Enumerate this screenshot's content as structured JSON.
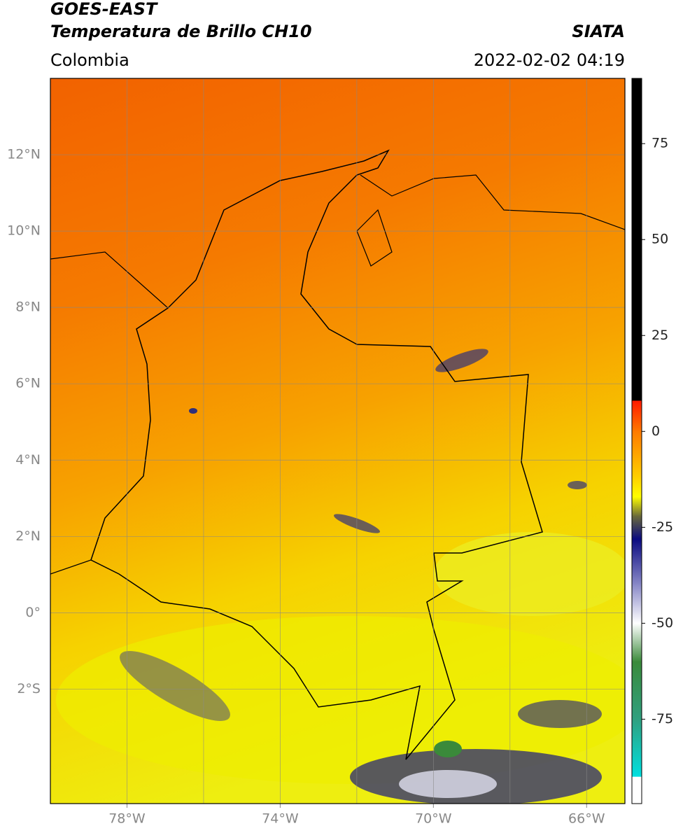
{
  "header": {
    "title": "GOES-EAST",
    "subtitle": "Temperatura de Brillo CH10",
    "source": "SIATA",
    "region": "Colombia",
    "datetime": "2022-02-02 04:19"
  },
  "map": {
    "xlim": [
      -80,
      -65
    ],
    "ylim": [
      -5,
      14
    ],
    "xticks": [
      {
        "value": -78,
        "label": "78°W"
      },
      {
        "value": -74,
        "label": "74°W"
      },
      {
        "value": -70,
        "label": "70°W"
      },
      {
        "value": -66,
        "label": "66°W"
      }
    ],
    "xgrid": [
      -78,
      -76,
      -74,
      -72,
      -70,
      -68,
      -66
    ],
    "yticks": [
      {
        "value": 12,
        "label": "12°N"
      },
      {
        "value": 10,
        "label": "10°N"
      },
      {
        "value": 8,
        "label": "8°N"
      },
      {
        "value": 6,
        "label": "6°N"
      },
      {
        "value": 4,
        "label": "4°N"
      },
      {
        "value": 2,
        "label": "2°N"
      },
      {
        "value": 0,
        "label": "0°"
      },
      {
        "value": -2,
        "label": "2°S"
      }
    ],
    "grid": true
  },
  "colorbar": {
    "lim": [
      -97,
      92
    ],
    "ticks": [
      75,
      50,
      25,
      0,
      -25,
      -50,
      -75
    ],
    "stops": [
      {
        "value": 92,
        "color": "#000000"
      },
      {
        "value": 8,
        "color": "#000000"
      },
      {
        "value": 8,
        "color": "#ff1a00"
      },
      {
        "value": 0,
        "color": "#ff7a00"
      },
      {
        "value": -12,
        "color": "#ffd000"
      },
      {
        "value": -17,
        "color": "#ffff00"
      },
      {
        "value": -22,
        "color": "#6b6b3a"
      },
      {
        "value": -28,
        "color": "#0a0a80"
      },
      {
        "value": -40,
        "color": "#8a8ac8"
      },
      {
        "value": -50,
        "color": "#ffffff"
      },
      {
        "value": -60,
        "color": "#3a8a3a"
      },
      {
        "value": -75,
        "color": "#30a080"
      },
      {
        "value": -90,
        "color": "#00e0e0"
      },
      {
        "value": -90,
        "color": "#ffffff"
      },
      {
        "value": -97,
        "color": "#ffffff"
      }
    ]
  }
}
